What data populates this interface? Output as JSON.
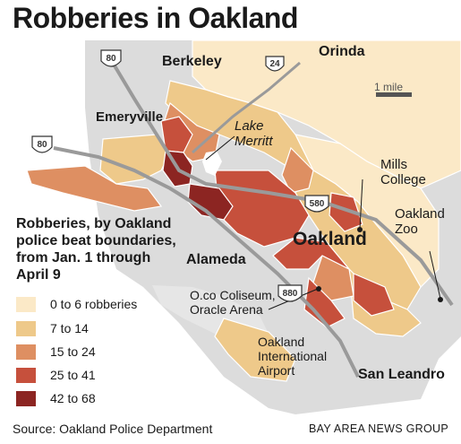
{
  "title": "Robberies in Oakland",
  "places": {
    "orinda": "Orinda",
    "berkeley": "Berkeley",
    "emeryville": "Emeryville",
    "lake_merritt": "Lake Merritt",
    "mills_college": "Mills College",
    "oakland_zoo": "Oakland Zoo",
    "oakland": "Oakland",
    "alameda": "Alameda",
    "coliseum": "O.co Coliseum, Oracle Arena",
    "airport": "Oakland International Airport",
    "san_leandro": "San Leandro"
  },
  "highways": [
    "80",
    "24",
    "80",
    "580",
    "880"
  ],
  "scale": {
    "label": "1 mile"
  },
  "legend": {
    "title": "Robberies, by Oakland police beat boundaries, from Jan. 1 through April 9",
    "items": [
      {
        "label": "0 to 6 robberies",
        "color": "#fbe9c7"
      },
      {
        "label": "7 to 14",
        "color": "#eec98a"
      },
      {
        "label": "15 to 24",
        "color": "#de8f62"
      },
      {
        "label": "25 to 41",
        "color": "#c6503c"
      },
      {
        "label": "42 to 68",
        "color": "#8c2522"
      }
    ]
  },
  "source": "Source: Oakland Police Department",
  "credit": "BAY AREA NEWS GROUP"
}
